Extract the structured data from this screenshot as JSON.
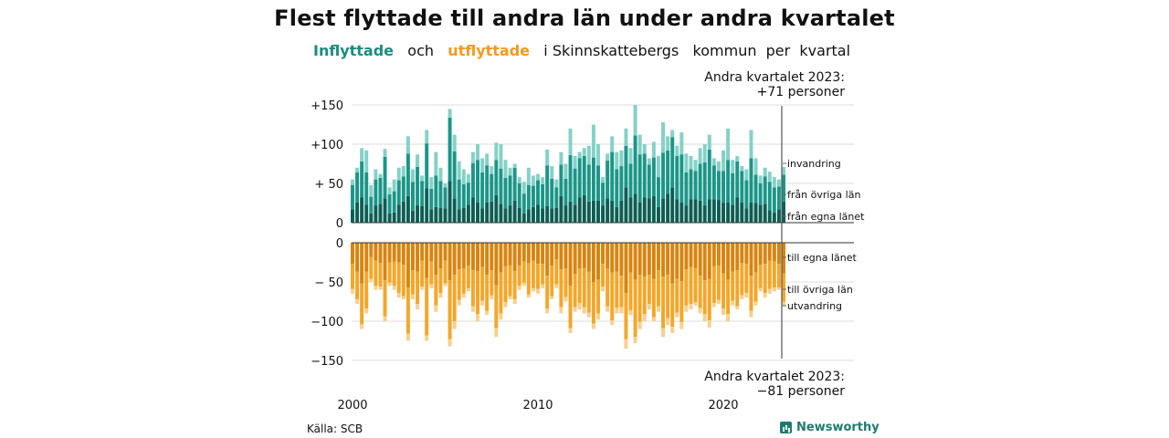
{
  "title": "Flest flyttade till andra län under andra kvartalet",
  "subtitle": {
    "inflow_word": "Inflyttade",
    "and_word": "och",
    "outflow_word": "utflyttade",
    "rest": "i Skinnskattebergs   kommun  per  kvartal"
  },
  "top_note": {
    "line1": "Andra kvartalet 2023:",
    "line2": "+71 personer"
  },
  "bottom_note": {
    "line1": "Andra kvartalet 2023:",
    "line2": "−81 personer"
  },
  "source": "Källa: SCB",
  "brand": "Newsworthy",
  "colors": {
    "in_own_county": "#0d5e55",
    "in_other_county": "#1b9688",
    "in_abroad": "#84d1c7",
    "out_own_county": "#d9840f",
    "out_other_county": "#f5a628",
    "out_abroad": "#f9cf8f",
    "subtitle_in": "#1b8c80",
    "subtitle_out": "#f29a1f"
  },
  "chart_data": {
    "type": "bar",
    "stacked": true,
    "x_start": "2000 Q1",
    "x_end": "2023 Q2",
    "periods": 94,
    "x_ticks": [
      "2000",
      "2010",
      "2020"
    ],
    "y_ticks_top": [
      "+150",
      "+100",
      "+ 50",
      "0"
    ],
    "y_ticks_bottom": [
      "0",
      "− 50",
      "−100",
      "−150"
    ],
    "ylim_top": [
      0,
      150
    ],
    "ylim_bottom": [
      -150,
      0
    ],
    "grid": true,
    "series_labels": {
      "in_abroad": "invandring",
      "in_other_county": "från övriga län",
      "in_own_county": "från egna länet",
      "out_own_county": "till egna länet",
      "out_other_county": "till övriga län",
      "out_abroad": "utvandring"
    },
    "inflow_totals": [
      55,
      70,
      95,
      92,
      48,
      68,
      62,
      94,
      45,
      55,
      70,
      72,
      110,
      68,
      87,
      60,
      118,
      58,
      90,
      70,
      50,
      145,
      112,
      78,
      68,
      62,
      90,
      100,
      82,
      88,
      72,
      102,
      100,
      80,
      70,
      75,
      58,
      52,
      70,
      60,
      62,
      58,
      93,
      72,
      55,
      90,
      75,
      120,
      85,
      90,
      95,
      98,
      125,
      100,
      58,
      88,
      110,
      90,
      92,
      120,
      95,
      150,
      112,
      100,
      82,
      103,
      85,
      128,
      110,
      118,
      98,
      115,
      88,
      85,
      80,
      95,
      100,
      112,
      82,
      78,
      92,
      120,
      80,
      85,
      72,
      68,
      118,
      82,
      60,
      70,
      65,
      58,
      55,
      71
    ],
    "outflow_totals": [
      -65,
      -78,
      -110,
      -90,
      -50,
      -60,
      -60,
      -100,
      -55,
      -60,
      -70,
      -72,
      -125,
      -72,
      -85,
      -60,
      -125,
      -58,
      -88,
      -70,
      -55,
      -132,
      -110,
      -80,
      -70,
      -62,
      -88,
      -100,
      -80,
      -92,
      -72,
      -120,
      -98,
      -82,
      -72,
      -78,
      -60,
      -55,
      -70,
      -62,
      -65,
      -58,
      -90,
      -72,
      -58,
      -90,
      -75,
      -115,
      -88,
      -85,
      -90,
      -95,
      -110,
      -98,
      -62,
      -88,
      -105,
      -90,
      -90,
      -135,
      -92,
      -128,
      -110,
      -100,
      -85,
      -100,
      -88,
      -120,
      -105,
      -115,
      -95,
      -110,
      -88,
      -85,
      -80,
      -90,
      -100,
      -108,
      -82,
      -78,
      -92,
      -100,
      -80,
      -85,
      -72,
      -70,
      -95,
      -80,
      -62,
      -70,
      -65,
      -62,
      -60,
      -81
    ]
  }
}
